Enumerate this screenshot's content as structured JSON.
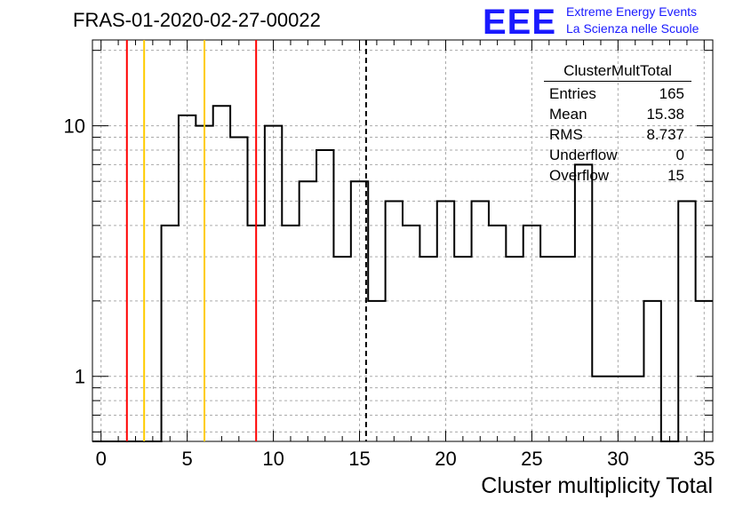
{
  "title": "FRAS-01-2020-02-27-00022",
  "logo": {
    "mark": "EEE",
    "line1": "Extreme Energy Events",
    "line2": "La Scienza nelle Scuole",
    "color": "#1a1aff"
  },
  "stats": {
    "name": "ClusterMultTotal",
    "rows": [
      {
        "label": "Entries",
        "value": "165"
      },
      {
        "label": "Mean",
        "value": "15.38"
      },
      {
        "label": "RMS",
        "value": "8.737"
      },
      {
        "label": "Underflow",
        "value": "0"
      },
      {
        "label": "Overflow",
        "value": "15"
      }
    ]
  },
  "chart_data": {
    "type": "histogram",
    "title": "FRAS-01-2020-02-27-00022",
    "xlabel": "Cluster multiplicity Total",
    "ylabel": "",
    "xlim": [
      -0.5,
      35.5
    ],
    "ylim": [
      0.55,
      22
    ],
    "yscale": "log",
    "grid": true,
    "bin_edges": [
      -0.5,
      0.5,
      1.5,
      2.5,
      3.5,
      4.5,
      5.5,
      6.5,
      7.5,
      8.5,
      9.5,
      10.5,
      11.5,
      12.5,
      13.5,
      14.5,
      15.5,
      16.5,
      17.5,
      18.5,
      19.5,
      20.5,
      21.5,
      22.5,
      23.5,
      24.5,
      25.5,
      26.5,
      27.5,
      28.5,
      29.5,
      30.5,
      31.5,
      32.5,
      33.5,
      34.5,
      35.5
    ],
    "values": [
      0,
      0,
      0,
      0,
      4,
      11,
      10,
      12,
      9,
      4,
      10,
      4,
      6,
      8,
      3,
      6,
      2,
      5,
      4,
      3,
      5,
      3,
      5,
      4,
      3,
      4,
      3,
      3,
      7,
      1,
      1,
      1,
      2,
      0,
      5,
      2
    ],
    "x_ticks": [
      0,
      5,
      10,
      15,
      20,
      25,
      30,
      35
    ],
    "y_ticks": [
      1,
      10
    ],
    "vertical_lines": [
      {
        "x": 1.5,
        "color": "#ff0000",
        "style": "solid"
      },
      {
        "x": 2.5,
        "color": "#ffcc00",
        "style": "solid"
      },
      {
        "x": 6.0,
        "color": "#ffcc00",
        "style": "solid"
      },
      {
        "x": 9.0,
        "color": "#ff0000",
        "style": "solid"
      },
      {
        "x": 15.38,
        "color": "#000000",
        "style": "dashed"
      }
    ]
  }
}
